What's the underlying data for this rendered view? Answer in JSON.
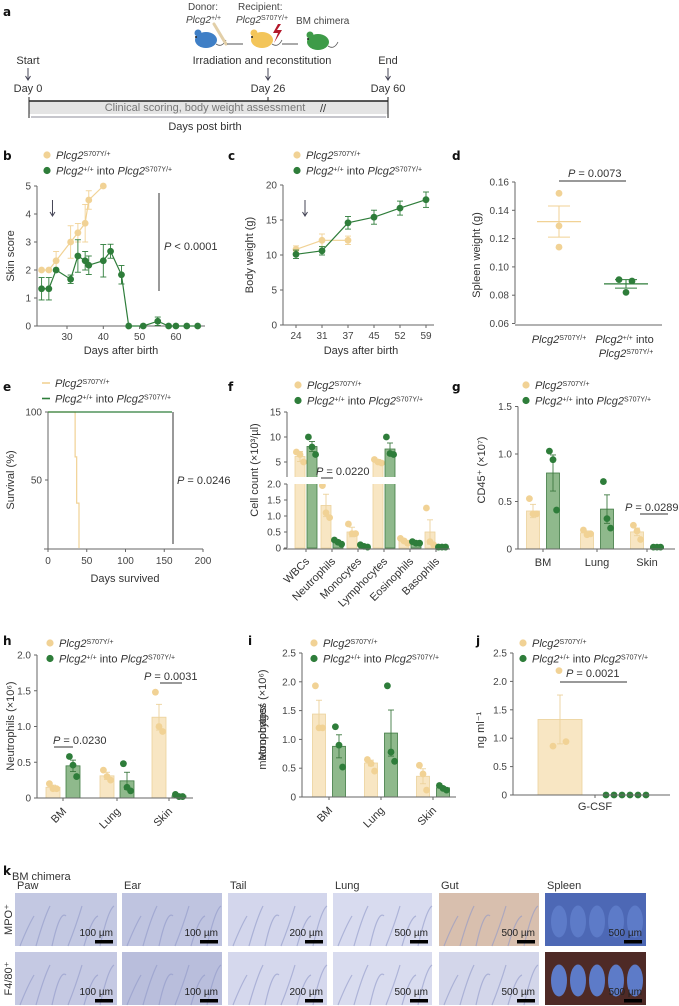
{
  "colors": {
    "s1_dot": "#f1d295",
    "s1_bar": "#f8e6c3",
    "s1_edge": "#ecd29c",
    "s2_dot": "#2e7d3a",
    "s2_bar": "#8fb98c",
    "s2_edge": "#3f7a42",
    "axis": "#666666"
  },
  "legend": {
    "s1": {
      "gene": "Plcg2",
      "sup": "S707Y/+"
    },
    "s2": {
      "gene": "Plcg2",
      "sup": "+/+",
      "mid": " into ",
      "gene2": "Plcg2",
      "sup2": "S707Y/+"
    }
  },
  "panel_labels": [
    "a",
    "b",
    "c",
    "d",
    "e",
    "f",
    "g",
    "h",
    "i",
    "j",
    "k"
  ],
  "panel_a": {
    "donor": "Donor:",
    "donor_gene": "Plcg2",
    "donor_sup": "+/+",
    "recipient": "Recipient:",
    "recipient_gene": "Plcg2",
    "recipient_sup": "S707Y/+",
    "chimera": "BM chimera",
    "procedure": "Irradiation and reconstitution",
    "start": "Start",
    "end": "End",
    "day0": "Day 0",
    "day26": "Day 26",
    "day60": "Day 60",
    "bar_text": "Clinical scoring, body weight assessment",
    "axis_label": "Days post birth",
    "icons": [
      "mouse-donor-blue",
      "bone",
      "mouse-recipient-yellow",
      "lightning",
      "mouse-chimera-green"
    ]
  },
  "chart_data": [
    {
      "panel": "b",
      "type": "line",
      "xlabel": "Days after birth",
      "ylabel": "Skin score",
      "ylim": [
        0,
        5
      ],
      "xticks": [
        "30",
        "40",
        "50",
        "60"
      ],
      "yticks": [
        "0",
        "1",
        "2",
        "3",
        "4",
        "5"
      ],
      "p_label": "P",
      "p_value": " < 0.0001",
      "arrow_day": 26,
      "series": [
        {
          "legend": "s1",
          "x": [
            23,
            25,
            27,
            31,
            33,
            35,
            36,
            40
          ],
          "y": [
            2,
            2,
            2.33,
            3,
            3.33,
            3.67,
            4.5,
            5
          ],
          "err": [
            0,
            0,
            0.33,
            0.58,
            0.33,
            0.67,
            0.33,
            0
          ]
        },
        {
          "legend": "s2",
          "x": [
            23,
            25,
            27,
            31,
            33,
            35,
            36,
            40,
            42,
            45,
            47,
            51,
            55,
            58,
            60,
            63,
            66
          ],
          "y": [
            1.33,
            1.33,
            2,
            1.67,
            2.5,
            2.33,
            2.17,
            2.33,
            2.67,
            1.83,
            0,
            0,
            0.17,
            0,
            0,
            0,
            0
          ],
          "err": [
            0.4,
            0.4,
            0,
            0.15,
            0.58,
            0.33,
            0.33,
            0.58,
            0.25,
            0.33,
            0,
            0,
            0.15,
            0,
            0,
            0,
            0
          ]
        }
      ]
    },
    {
      "panel": "c",
      "type": "line",
      "xlabel": "Days after birth",
      "ylabel": "Body weight (g)",
      "ylim": [
        0,
        20
      ],
      "xticks": [
        "24",
        "31",
        "37",
        "45",
        "52",
        "59"
      ],
      "yticks": [
        "0",
        "5",
        "10",
        "15",
        "20"
      ],
      "arrow_day": 26,
      "series": [
        {
          "legend": "s1",
          "x": [
            "24",
            "31",
            "37"
          ],
          "y": [
            10.8,
            12.1,
            12.1
          ],
          "err": [
            0.5,
            0.9,
            0.6
          ]
        },
        {
          "legend": "s2",
          "x": [
            "24",
            "31",
            "37",
            "45",
            "52",
            "59"
          ],
          "y": [
            10.1,
            10.6,
            14.6,
            15.4,
            16.7,
            17.9
          ],
          "err": [
            0.6,
            0.6,
            0.9,
            1.0,
            1.0,
            1.1
          ]
        }
      ]
    },
    {
      "panel": "d",
      "type": "scatter",
      "ylabel": "Spleen weight (g)",
      "ylim": [
        0.06,
        0.16
      ],
      "yticks": [
        "0.06",
        "0.08",
        "0.10",
        "0.12",
        "0.14",
        "0.16"
      ],
      "p_label": "P",
      "p_value": " = 0.0073",
      "groups": [
        {
          "legend": "s1",
          "points": [
            0.152,
            0.129,
            0.114
          ],
          "mean": 0.132,
          "err": 0.011
        },
        {
          "legend": "s2",
          "points": [
            0.091,
            0.09,
            0.082
          ],
          "mean": 0.088,
          "err": 0.003
        }
      ]
    },
    {
      "panel": "e",
      "type": "line",
      "xlabel": "Days survived",
      "ylabel": "Survival (%)",
      "xlim": [
        0,
        200
      ],
      "ylim": [
        0,
        100
      ],
      "xticks": [
        "0",
        "50",
        "100",
        "150",
        "200"
      ],
      "yticks": [
        "50",
        "100"
      ],
      "p_label": "P",
      "p_value": " = 0.0246",
      "series": [
        {
          "legend": "s1",
          "x": [
            0,
            35,
            37,
            40
          ],
          "y": [
            100,
            67,
            33,
            0
          ]
        },
        {
          "legend": "s2",
          "x": [
            0,
            160
          ],
          "y": [
            100,
            100
          ]
        }
      ]
    },
    {
      "panel": "f",
      "type": "bar",
      "ylabel": "Cell count (×10³/µl)",
      "ylim": [
        0,
        15
      ],
      "axis_break": true,
      "categories": [
        "WBCs",
        "Neutrophils",
        "Monocytes",
        "Lymphocytes",
        "Eosinophils",
        "Basophils"
      ],
      "yticks_lower": [
        "0",
        "0.5",
        "1.0",
        "1.5",
        "2.0"
      ],
      "yticks_upper": [
        "5",
        "10",
        "15"
      ],
      "p_label": "P",
      "p_value": " = 0.0220",
      "p_category": "Neutrophils",
      "series": [
        {
          "legend": "s1",
          "mean": [
            6.1,
            1.33,
            0.5,
            5.2,
            0.23,
            0.5
          ],
          "err": [
            1.0,
            0.35,
            0.15,
            0.3,
            0.05,
            0.38
          ],
          "points": [
            [
              7,
              6.5,
              5
            ],
            [
              1.95,
              1.1,
              0.95
            ],
            [
              0.75,
              0.45,
              0.45
            ],
            [
              5.5,
              5,
              4.8
            ],
            [
              0.3,
              0.22,
              0.15
            ],
            [
              1.25,
              0.2,
              0.1
            ]
          ]
        },
        {
          "legend": "s2",
          "mean": [
            8.1,
            0.2,
            0.07,
            7.6,
            0.17,
            0.03
          ],
          "err": [
            1.0,
            0.04,
            0.02,
            1.2,
            0.02,
            0.01
          ],
          "points": [
            [
              10,
              8,
              6.5
            ],
            [
              0.25,
              0.18,
              0.12
            ],
            [
              0.1,
              0.05,
              0.03
            ],
            [
              10,
              6.7,
              6.5
            ],
            [
              0.2,
              0.15,
              0.15
            ],
            [
              0.03,
              0.03,
              0.03
            ]
          ]
        }
      ]
    },
    {
      "panel": "g",
      "type": "bar",
      "ylabel": "CD45⁺ (×10⁷)",
      "ylim": [
        0,
        1.5
      ],
      "categories": [
        "BM",
        "Lung",
        "Skin"
      ],
      "yticks": [
        "0",
        "0.5",
        "1.0",
        "1.5"
      ],
      "p_label": "P",
      "p_value": " = 0.0289",
      "p_category": "Skin",
      "series": [
        {
          "legend": "s1",
          "mean": [
            0.4,
            0.17,
            0.18
          ],
          "err": [
            0.07,
            0.02,
            0.04
          ],
          "points": [
            [
              0.53,
              0.37,
              0.37
            ],
            [
              0.2,
              0.15,
              0.16
            ],
            [
              0.25,
              0.19,
              0.1
            ]
          ]
        },
        {
          "legend": "s2",
          "mean": [
            0.8,
            0.42,
            0.02
          ],
          "err": [
            0.19,
            0.15,
            0.005
          ],
          "points": [
            [
              1.03,
              0.94,
              0.41
            ],
            [
              0.71,
              0.32,
              0.22
            ],
            [
              0.02,
              0.02,
              0.02
            ]
          ]
        }
      ]
    },
    {
      "panel": "h",
      "type": "bar",
      "ylabel": "Neutrophils (×10⁶)",
      "ylim": [
        0,
        2
      ],
      "categories": [
        "BM",
        "Lung",
        "Skin"
      ],
      "yticks": [
        "0",
        "0.5",
        "1.0",
        "1.5",
        "2.0"
      ],
      "p_annotations": [
        {
          "label": "P",
          "value": " = 0.0230",
          "category": "BM"
        },
        {
          "label": "P",
          "value": " = 0.0031",
          "category": "Skin"
        }
      ],
      "series": [
        {
          "legend": "s1",
          "mean": [
            0.15,
            0.31,
            1.13
          ],
          "err": [
            0.03,
            0.05,
            0.18
          ],
          "points": [
            [
              0.2,
              0.13,
              0.13
            ],
            [
              0.39,
              0.3,
              0.25
            ],
            [
              1.48,
              1.0,
              0.93
            ]
          ]
        },
        {
          "legend": "s2",
          "mean": [
            0.45,
            0.24,
            0.03
          ],
          "err": [
            0.08,
            0.12,
            0.01
          ],
          "points": [
            [
              0.58,
              0.46,
              0.3
            ],
            [
              0.48,
              0.15,
              0.1
            ],
            [
              0.05,
              0.02,
              0.02
            ]
          ]
        }
      ]
    },
    {
      "panel": "i",
      "type": "bar",
      "ylabel": [
        "Monocytes/",
        "macrophages (×10⁶)"
      ],
      "ylim": [
        0,
        2.5
      ],
      "categories": [
        "BM",
        "Lung",
        "Skin"
      ],
      "yticks": [
        "0",
        "0.5",
        "1.0",
        "1.5",
        "2.0",
        "2.5"
      ],
      "series": [
        {
          "legend": "s1",
          "mean": [
            1.44,
            0.59,
            0.36
          ],
          "err": [
            0.24,
            0.05,
            0.13
          ],
          "points": [
            [
              1.93,
              1.2,
              1.2
            ],
            [
              0.65,
              0.58,
              0.45
            ],
            [
              0.55,
              0.4,
              0.12
            ]
          ]
        },
        {
          "legend": "s2",
          "mean": [
            0.88,
            1.11,
            0.16
          ],
          "err": [
            0.2,
            0.4,
            0.02
          ],
          "points": [
            [
              1.22,
              0.9,
              0.52
            ],
            [
              1.93,
              0.78,
              0.62
            ],
            [
              0.2,
              0.15,
              0.12
            ]
          ]
        }
      ]
    },
    {
      "panel": "j",
      "type": "bar",
      "ylabel": "ng ml⁻¹",
      "ylim": [
        0,
        2.5
      ],
      "categories": [
        "G-CSF"
      ],
      "yticks": [
        "0",
        "0.5",
        "1.0",
        "1.5",
        "2.0",
        "2.5"
      ],
      "p_label": "P",
      "p_value": " = 0.0021",
      "series": [
        {
          "legend": "s1",
          "mean": [
            1.33
          ],
          "err": [
            0.43
          ],
          "points": [
            [
              2.19,
              0.86,
              0.94
            ]
          ]
        },
        {
          "legend": "s2",
          "mean": [
            0
          ],
          "err": [
            0
          ],
          "points": [
            [
              0,
              0,
              0,
              0,
              0,
              0
            ]
          ]
        }
      ]
    }
  ],
  "panel_k": {
    "header": "BM chimera",
    "columns": [
      "Paw",
      "Ear",
      "Tail",
      "Lung",
      "Gut",
      "Spleen"
    ],
    "rows": [
      "MPO⁺",
      "F4/80⁺"
    ],
    "scale_bars": [
      [
        "100 µm",
        "100 µm",
        "200 µm",
        "500 µm",
        "500 µm",
        "500 µm"
      ],
      [
        "100 µm",
        "100 µm",
        "200 µm",
        "500 µm",
        "500 µm",
        "500 µm"
      ]
    ]
  }
}
